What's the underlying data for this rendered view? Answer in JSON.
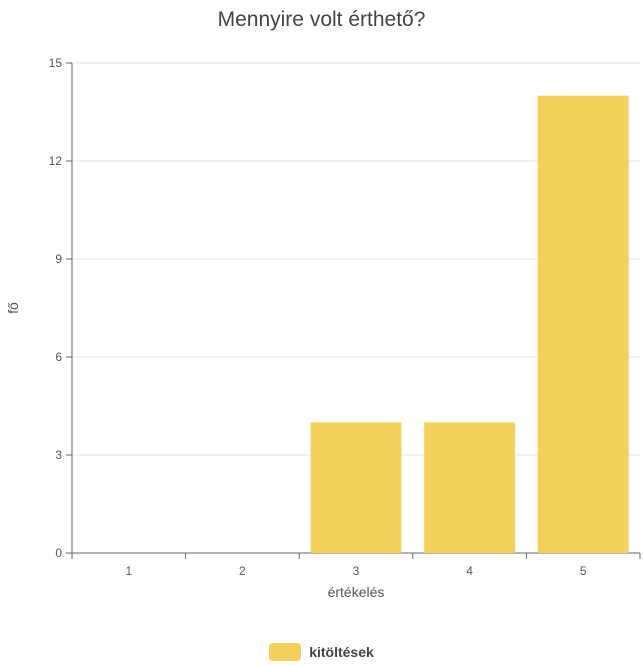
{
  "chart_data": {
    "type": "bar",
    "title": "Mennyire volt érthető?",
    "xlabel": "értékelés",
    "ylabel": "fő",
    "categories": [
      "1",
      "2",
      "3",
      "4",
      "5"
    ],
    "series": [
      {
        "name": "kitöltések",
        "values": [
          0,
          0,
          4,
          4,
          14
        ]
      }
    ],
    "ylim": [
      0,
      15
    ],
    "yticks": [
      0,
      3,
      6,
      9,
      12,
      15
    ],
    "grid": true,
    "legend_position": "bottom",
    "colors": {
      "bar": "#f2d05c",
      "grid": "#e6e6e6",
      "axis": "#666666",
      "text": "#555555"
    }
  }
}
